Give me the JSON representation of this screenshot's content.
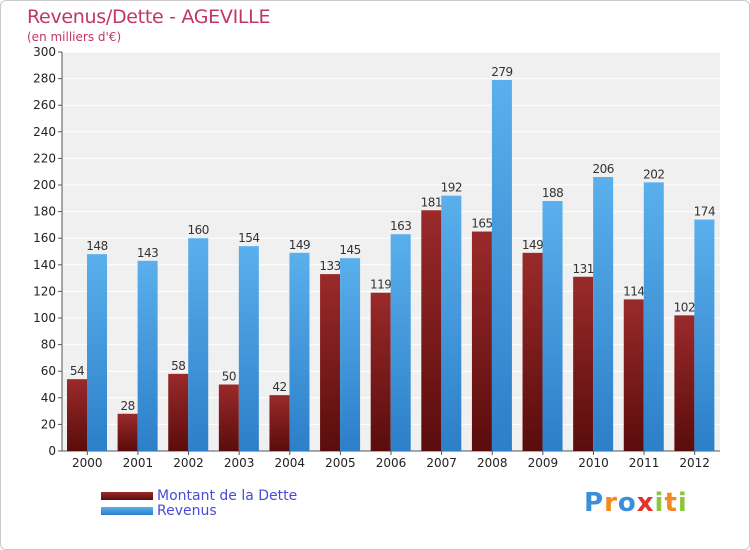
{
  "header": {
    "title": "Revenus/Dette - AGEVILLE",
    "subtitle": "(en milliers d'€)"
  },
  "chart_data": {
    "type": "bar",
    "title": "Revenus/Dette - AGEVILLE",
    "subtitle": "(en milliers d'€)",
    "xlabel": "",
    "ylabel": "",
    "ylim": [
      0,
      300
    ],
    "yticks": [
      0,
      20,
      40,
      60,
      80,
      100,
      120,
      140,
      160,
      180,
      200,
      220,
      240,
      260,
      280,
      300
    ],
    "grid": true,
    "categories": [
      "2000",
      "2001",
      "2002",
      "2003",
      "2004",
      "2005",
      "2006",
      "2007",
      "2008",
      "2009",
      "2010",
      "2011",
      "2012"
    ],
    "series": [
      {
        "name": "Montant de la Dette",
        "color": "#7a1a1a",
        "values": [
          54,
          28,
          58,
          50,
          42,
          133,
          119,
          181,
          165,
          149,
          131,
          114,
          102
        ]
      },
      {
        "name": "Revenus",
        "color": "#4a9fe0",
        "values": [
          148,
          143,
          160,
          154,
          149,
          145,
          163,
          192,
          279,
          188,
          206,
          202,
          174
        ]
      }
    ],
    "legend_position": "bottom-left"
  },
  "legend": {
    "debt_label": "Montant de la Dette",
    "revenue_label": "Revenus"
  },
  "brand": {
    "letters": [
      "P",
      "r",
      "o",
      "x",
      "i",
      "t",
      "i"
    ],
    "colors": [
      "#3a8fd8",
      "#f28a1e",
      "#3a8fd8",
      "#e0352b",
      "#8cc63f",
      "#f28a1e",
      "#8cc63f"
    ]
  }
}
